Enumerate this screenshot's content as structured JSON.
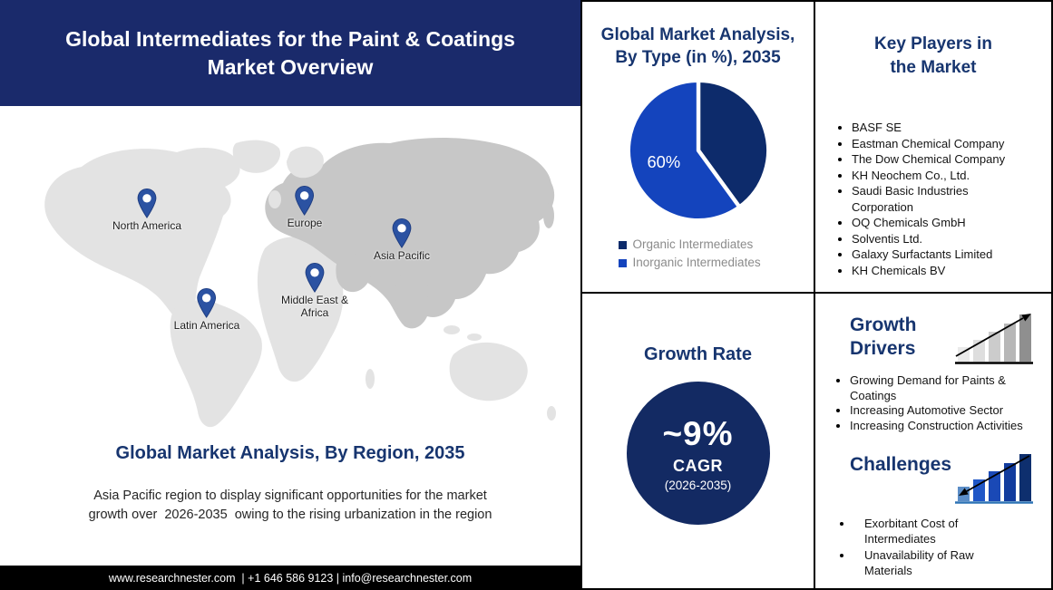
{
  "header": {
    "title": "Global Intermediates for the Paint & Coatings Market Overview"
  },
  "map": {
    "regions": [
      {
        "label": "North America"
      },
      {
        "label": "Europe"
      },
      {
        "label": "Asia Pacific"
      },
      {
        "label": "Middle East & Africa"
      },
      {
        "label": "Latin America"
      }
    ]
  },
  "region_section": {
    "heading": "Global Market Analysis, By Region, 2035",
    "description": {
      "before": "Asia Pacific region to display significant opportunities for the market growth over",
      "range": "2026-2035",
      "after": "owing to the rising urbanization in the region"
    }
  },
  "footer": {
    "text": "www.researchnester.com  | +1 646 586 9123 | info@researchnester.com"
  },
  "type_section": {
    "heading_line1": "Global Market Analysis,",
    "heading_line2": "By Type (in %), 2035"
  },
  "chart_data": [
    {
      "type": "pie",
      "title": "Global Market Analysis, By Type (in %), 2035",
      "labels": [
        "Organic Intermediates",
        "Inorganic Intermediates"
      ],
      "values": [
        40,
        60
      ],
      "colors": [
        "#0d2b6b",
        "#1444bd"
      ],
      "data_labels": [
        "",
        "60%"
      ],
      "start_angle_deg": 0,
      "legend_position": "bottom"
    }
  ],
  "growth_rate": {
    "heading": "Growth Rate",
    "value": "~9%",
    "label": "CAGR",
    "period": "(2026-2035)"
  },
  "key_players": {
    "heading_line1": "Key Players in",
    "heading_line2": "the Market",
    "items": [
      "BASF SE",
      "Eastman Chemical Company",
      "The Dow Chemical Company",
      "KH Neochem Co., Ltd.",
      "Saudi Basic Industries Corporation",
      "OQ Chemicals GmbH",
      "Solventis Ltd.",
      "Galaxy Surfactants Limited",
      "KH Chemicals BV"
    ]
  },
  "growth_drivers": {
    "heading_line1": "Growth",
    "heading_line2": "Drivers",
    "icon": "bar-chart-rising-arrow-icon",
    "items": [
      "Growing Demand for Paints & Coatings",
      "Increasing Automotive Sector",
      "Increasing Construction Activities"
    ]
  },
  "challenges": {
    "heading": "Challenges",
    "icon": "bar-chart-declining-arrow-icon",
    "items": [
      "Exorbitant Cost of Intermediates",
      "Unavailability of Raw Materials"
    ]
  },
  "colors": {
    "banner_navy": "#1a2a6b",
    "heading_navy": "#17356f",
    "pie_dark_blue": "#0d2b6b",
    "pie_royal_blue": "#1444bd",
    "cagr_circle_navy": "#132a63",
    "legend_text_gray": "#8b8b8b",
    "map_light_gray": "#e3e3e3",
    "map_dark_gray": "#c7c7c7",
    "pin_blue": "#2b52a2",
    "footer_black": "#000000"
  }
}
